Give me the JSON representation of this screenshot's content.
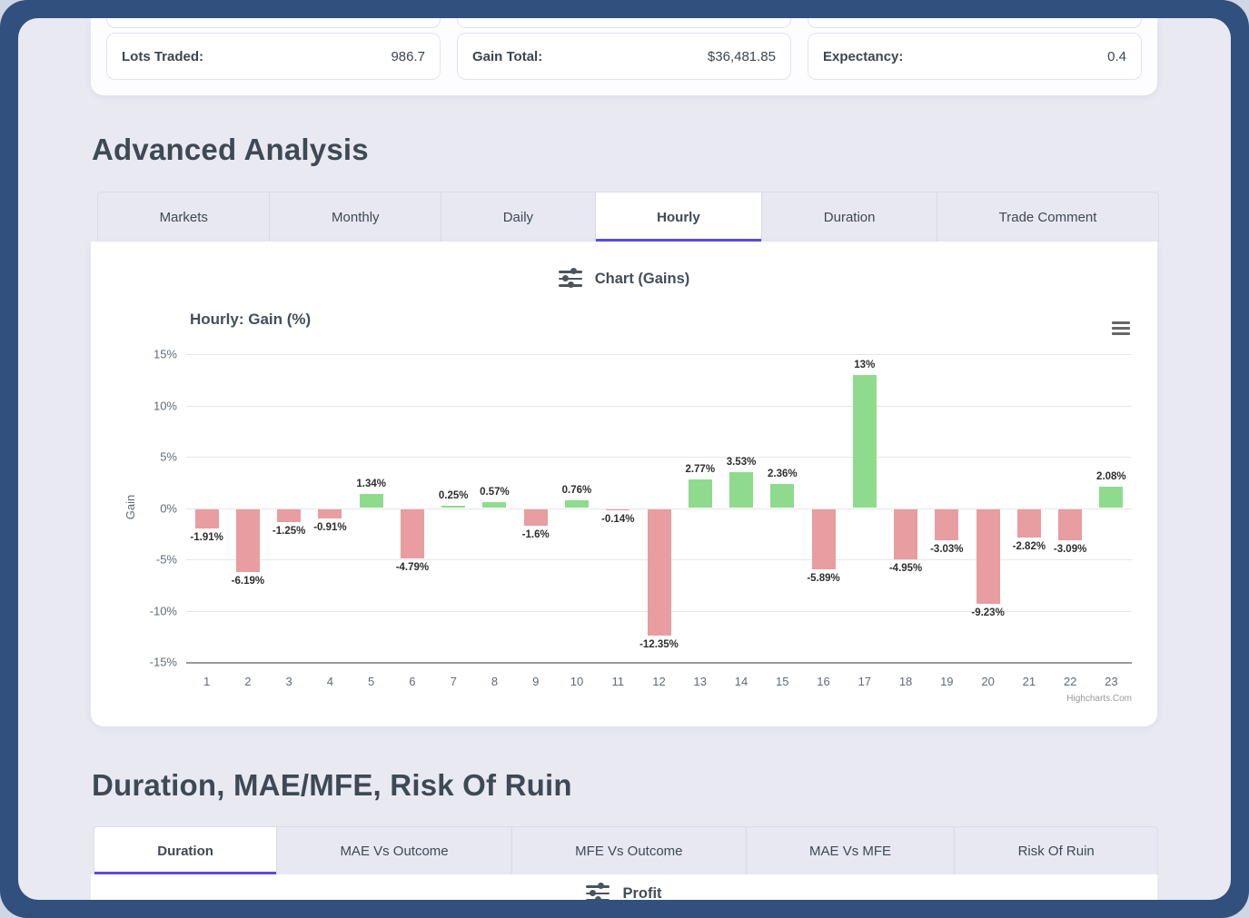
{
  "colors": {
    "frame": "#31507d",
    "page_bg": "#e9e9f2",
    "accent": "#584ee0",
    "positive_bar": "#8fdb8d",
    "negative_bar": "#e89da1",
    "heading_text": "#3e4954"
  },
  "stats": {
    "cards": [
      {
        "label": "Lots Traded:",
        "value": "986.7"
      },
      {
        "label": "Gain Total:",
        "value": "$36,481.85"
      },
      {
        "label": "Expectancy:",
        "value": "0.4"
      }
    ]
  },
  "advanced": {
    "title": "Advanced Analysis",
    "tabs": [
      {
        "label": "Markets",
        "active": false
      },
      {
        "label": "Monthly",
        "active": false
      },
      {
        "label": "Daily",
        "active": false
      },
      {
        "label": "Hourly",
        "active": true
      },
      {
        "label": "Duration",
        "active": false
      },
      {
        "label": "Trade Comment",
        "active": false
      }
    ],
    "chart_header": "Chart (Gains)",
    "chart_header_icon": "sliders-icon",
    "menu_icon": "hamburger-menu-icon"
  },
  "chart_data": {
    "type": "bar",
    "title": "Hourly: Gain (%)",
    "xlabel": "",
    "ylabel": "Gain",
    "categories": [
      "1",
      "2",
      "3",
      "4",
      "5",
      "6",
      "7",
      "8",
      "9",
      "10",
      "11",
      "12",
      "13",
      "14",
      "15",
      "16",
      "17",
      "18",
      "19",
      "20",
      "21",
      "22",
      "23"
    ],
    "values": [
      -1.91,
      -6.19,
      -1.25,
      -0.91,
      1.34,
      -4.79,
      0.25,
      0.57,
      -1.6,
      0.76,
      -0.14,
      -12.35,
      2.77,
      3.53,
      2.36,
      -5.89,
      13,
      -4.95,
      -3.03,
      -9.23,
      -2.82,
      -3.09,
      2.08
    ],
    "labels": [
      "-1.91%",
      "-6.19%",
      "-1.25%",
      "-0.91%",
      "1.34%",
      "-4.79%",
      "0.25%",
      "0.57%",
      "-1.6%",
      "0.76%",
      "-0.14%",
      "-12.35%",
      "2.77%",
      "3.53%",
      "2.36%",
      "-5.89%",
      "13%",
      "-4.95%",
      "-3.03%",
      "-9.23%",
      "-2.82%",
      "-3.09%",
      "2.08%"
    ],
    "ylim": [
      -15,
      15
    ],
    "yticks": [
      "15%",
      "10%",
      "5%",
      "0%",
      "-5%",
      "-10%",
      "-15%"
    ],
    "grid": true,
    "legend": "none",
    "positive_color": "#8fdb8d",
    "negative_color": "#e89da1",
    "credit": "Highcharts.Com"
  },
  "duration_section": {
    "title": "Duration, MAE/MFE, Risk Of Ruin",
    "tabs": [
      {
        "label": "Duration",
        "active": true
      },
      {
        "label": "MAE Vs Outcome",
        "active": false
      },
      {
        "label": "MFE Vs Outcome",
        "active": false
      },
      {
        "label": "MAE Vs MFE",
        "active": false
      },
      {
        "label": "Risk Of Ruin",
        "active": false
      }
    ],
    "panel_header": "Profit",
    "panel_header_icon": "sliders-icon"
  }
}
